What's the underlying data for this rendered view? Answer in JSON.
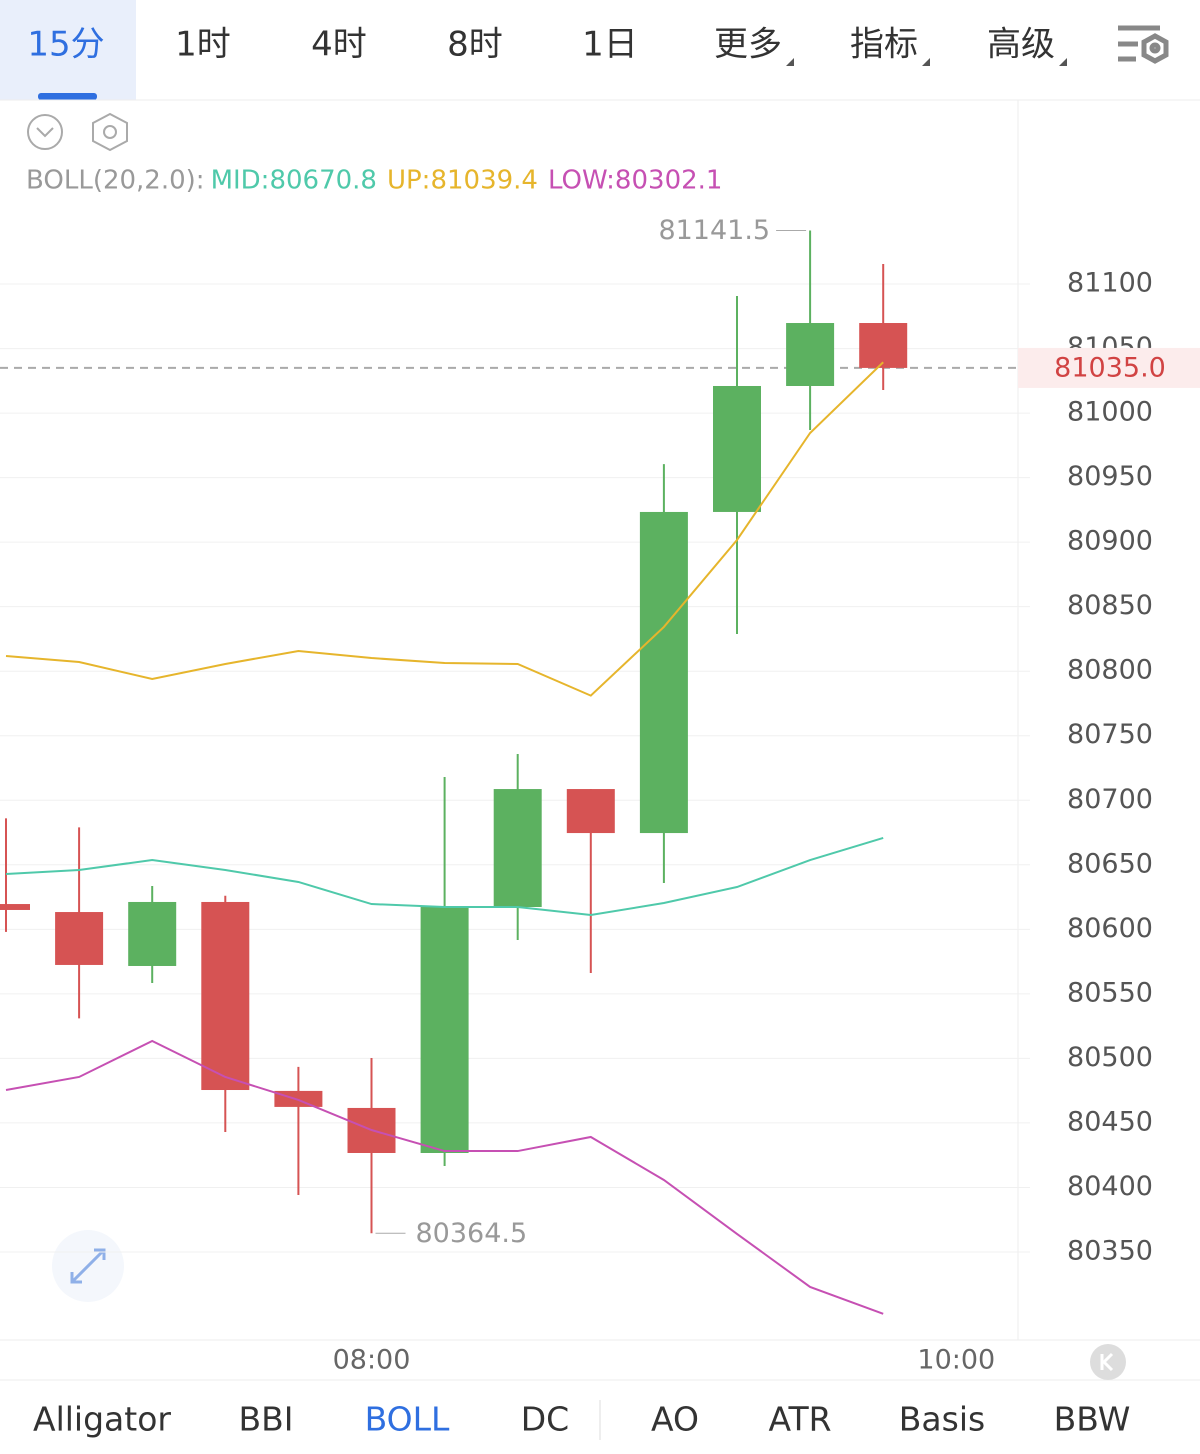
{
  "timeframe_tabs": [
    "15分",
    "1时",
    "4时",
    "8时",
    "1日",
    "更多",
    "指标",
    "高级"
  ],
  "indicator_tabs": [
    "Alligator",
    "BBI",
    "BOLL",
    "DC",
    "AO",
    "ATR",
    "Basis",
    "BBW"
  ],
  "chart_data": {
    "type": "candlestick",
    "indicator_title": "BOLL(20,2.0):",
    "categories": [
      null,
      null,
      null,
      null,
      null,
      "08:00",
      null,
      null,
      null,
      null,
      null,
      null,
      null
    ],
    "x_tick_labels": [
      "08:00",
      "10:00"
    ],
    "open": [
      80619.6,
      80613.4,
      80571.6,
      80621.2,
      80474.8,
      80461.6,
      80426.7,
      80617.3,
      80708.7,
      80674.6,
      80923.4,
      81021.0,
      81069.8
    ],
    "high": [
      80686.0,
      80679.0,
      80633.6,
      80626.0,
      80493.4,
      80500.3,
      80718.0,
      80735.9,
      80708.7,
      80960.5,
      81090.7,
      81141.5,
      81115.5
    ],
    "low": [
      80598.0,
      80531.0,
      80558.4,
      80443.0,
      80394.2,
      80364.5,
      80416.6,
      80591.7,
      80566.2,
      80635.9,
      80828.8,
      80986.9,
      81017.9
    ],
    "close": [
      80615.0,
      80572.4,
      80621.2,
      80475.5,
      80462.4,
      80426.7,
      80617.3,
      80708.7,
      80674.6,
      80923.4,
      81021.0,
      81069.8,
      81035.0
    ],
    "up_color": "#5cb160",
    "down_color": "#d65353",
    "overlays": [
      {
        "label": "MID:80670.8",
        "color": "#4fc9aa",
        "values": [
          80642.9,
          80646.0,
          80653.7,
          80646.0,
          80636.7,
          80619.6,
          80617.3,
          80617.3,
          80611.1,
          80620.4,
          80632.8,
          80653.7,
          80670.8
        ]
      },
      {
        "label": "UP:81039.4",
        "color": "#e6b52c",
        "values": [
          80811.8,
          80807.1,
          80794.0,
          80805.6,
          80815.7,
          80810.2,
          80806.4,
          80805.6,
          80781.1,
          80834.3,
          80901.7,
          80984.6,
          81039.4
        ]
      },
      {
        "label": "LOW:80302.1",
        "color": "#c650b3",
        "values": [
          80475.5,
          80485.6,
          80513.5,
          80485.6,
          80467.8,
          80444.5,
          80428.2,
          80428.2,
          80439.1,
          80405.8,
          80364.0,
          80322.9,
          80302.1
        ]
      }
    ],
    "high_label": "81141.5",
    "low_label": "80364.5",
    "last_price": 81035.0,
    "last_price_label": "81035.0",
    "ylim": [
      80281.8,
      81242.6
    ],
    "yticks": [
      80350,
      80400,
      80450,
      80500,
      80550,
      80600,
      80650,
      80700,
      80750,
      80800,
      80850,
      80900,
      80950,
      81000,
      81050,
      81100
    ],
    "grid": true
  }
}
